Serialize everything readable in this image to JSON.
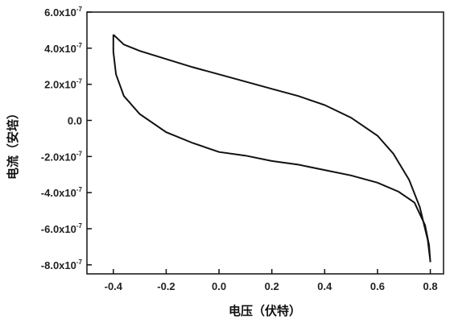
{
  "chart_data": {
    "type": "line",
    "xlabel": "电压（伏特）",
    "ylabel": "电流（安培）",
    "xlim": [
      -0.5,
      0.85
    ],
    "ylim": [
      -8.5e-07,
      6e-07
    ],
    "x_ticks": [
      -0.4,
      -0.2,
      0.0,
      0.2,
      0.4,
      0.6,
      0.8
    ],
    "x_tick_labels": [
      "-0.4",
      "-0.2",
      "0.0",
      "0.2",
      "0.4",
      "0.6",
      "0.8"
    ],
    "y_ticks": [
      6e-07,
      4e-07,
      2e-07,
      0.0,
      -2e-07,
      -4e-07,
      -6e-07,
      -8e-07
    ],
    "y_tick_labels": [
      {
        "base": "6.0x10",
        "exp": "-7"
      },
      {
        "base": "4.0x10",
        "exp": "-7"
      },
      {
        "base": "2.0x10",
        "exp": "-7"
      },
      {
        "base": "0.0",
        "exp": ""
      },
      {
        "base": "-2.0x10",
        "exp": "-7"
      },
      {
        "base": "-4.0x10",
        "exp": "-7"
      },
      {
        "base": "-6.0x10",
        "exp": "-7"
      },
      {
        "base": "-8.0x10",
        "exp": "-7"
      }
    ],
    "grid": false,
    "series": [
      {
        "x": [
          -0.4,
          -0.36,
          -0.3,
          -0.2,
          -0.1,
          0.0,
          0.1,
          0.2,
          0.3,
          0.4,
          0.5,
          0.6,
          0.66,
          0.72,
          0.76,
          0.79,
          0.8,
          0.8,
          0.795,
          0.78,
          0.74,
          0.68,
          0.6,
          0.5,
          0.4,
          0.3,
          0.2,
          0.1,
          0.0,
          -0.1,
          -0.2,
          -0.3,
          -0.36,
          -0.39,
          -0.4,
          -0.4
        ],
        "y": [
          4.75e-07,
          4.2e-07,
          3.85e-07,
          3.4e-07,
          2.95e-07,
          2.55e-07,
          2.15e-07,
          1.75e-07,
          1.35e-07,
          8.5e-08,
          1.5e-08,
          -8.5e-08,
          -1.85e-07,
          -3.3e-07,
          -4.8e-07,
          -6.6e-07,
          -7.8e-07,
          -7.85e-07,
          -6.9e-07,
          -5.8e-07,
          -4.55e-07,
          -3.95e-07,
          -3.45e-07,
          -3.05e-07,
          -2.75e-07,
          -2.45e-07,
          -2.25e-07,
          -1.95e-07,
          -1.75e-07,
          -1.25e-07,
          -6.5e-08,
          3.5e-08,
          1.35e-07,
          2.55e-07,
          3.8e-07,
          4.75e-07
        ]
      }
    ]
  }
}
